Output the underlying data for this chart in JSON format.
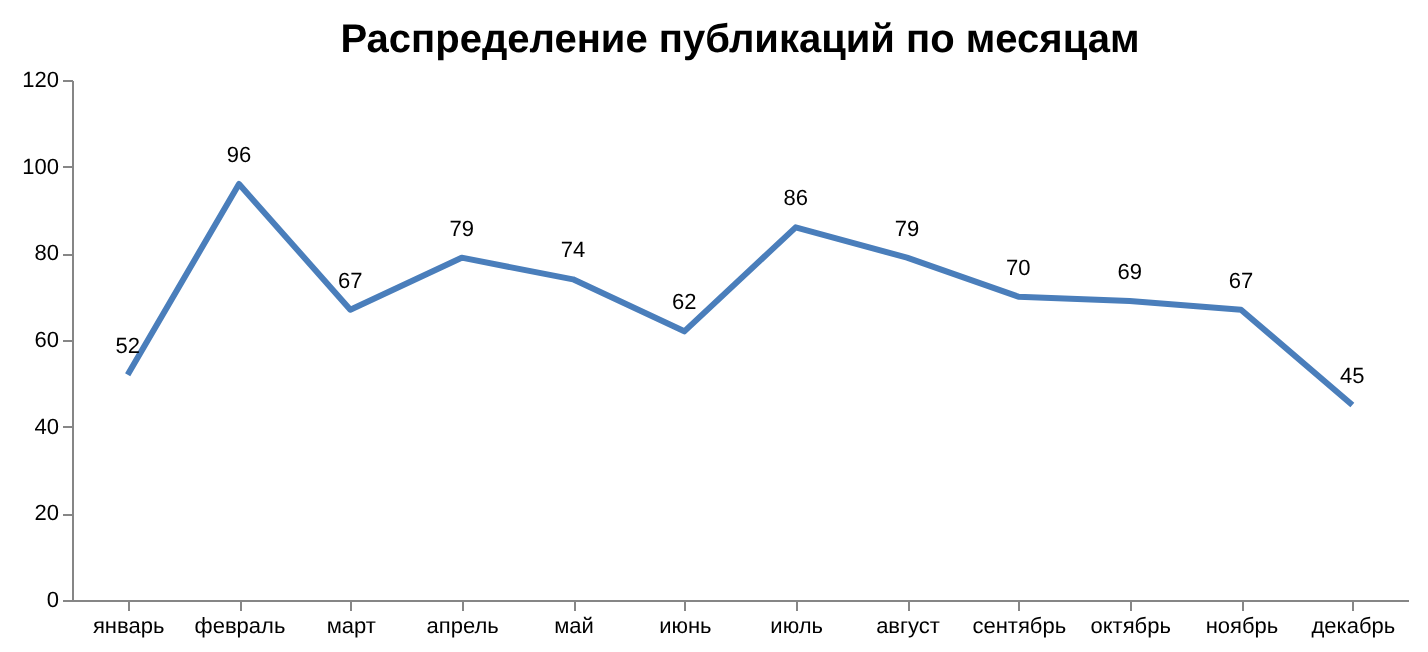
{
  "chart_data": {
    "type": "line",
    "title": "Распределение публикаций по месяцам",
    "categories": [
      "январь",
      "февраль",
      "март",
      "апрель",
      "май",
      "июнь",
      "июль",
      "август",
      "сентябрь",
      "октябрь",
      "ноябрь",
      "декабрь"
    ],
    "series": [
      {
        "color": "#4a7ebb",
        "values": [
          52,
          96,
          67,
          79,
          74,
          62,
          86,
          79,
          70,
          69,
          67,
          45
        ]
      }
    ],
    "ylim": [
      0,
      120
    ],
    "yticks": [
      0,
      20,
      40,
      60,
      80,
      100,
      120
    ],
    "grid": false,
    "data_labels": true,
    "marker": "none",
    "line_style": "solid"
  }
}
